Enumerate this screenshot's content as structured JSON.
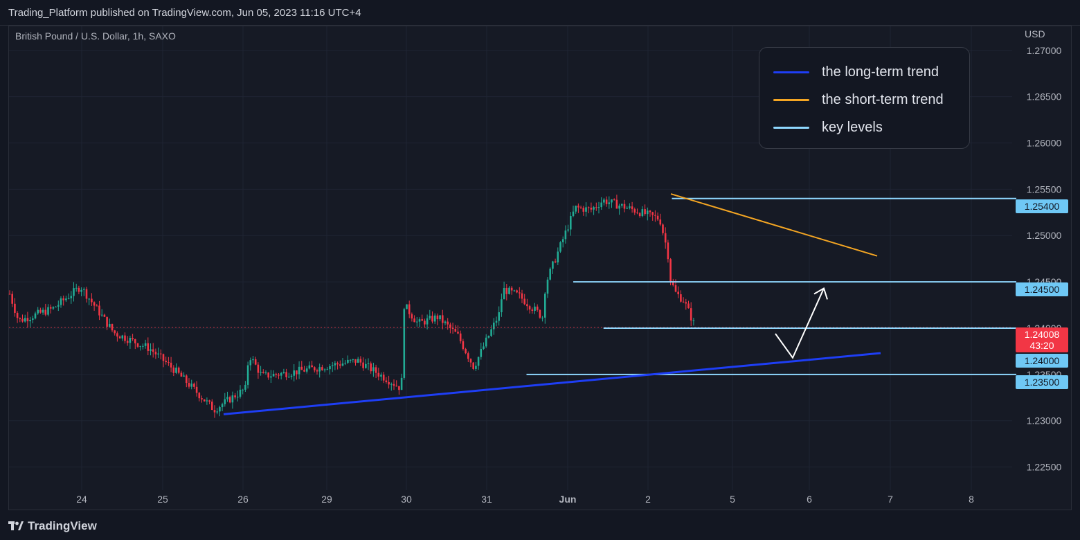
{
  "header": {
    "publish_text": "Trading_Platform published on TradingView.com, Jun 05, 2023 11:16 UTC+4"
  },
  "symbol": {
    "title": "British Pound / U.S. Dollar, 1h, SAXO",
    "currency": "USD"
  },
  "footer": {
    "brand": "TradingView"
  },
  "legend": {
    "items": [
      {
        "label": "the long-term trend",
        "color": "#1e3ef5"
      },
      {
        "label": "the short-term trend",
        "color": "#f5a623"
      },
      {
        "label": "key levels",
        "color": "#8fd8ff"
      }
    ]
  },
  "price_tags": {
    "last_price": "1.24008",
    "countdown": "43:20",
    "levels": [
      "1.25400",
      "1.24500",
      "1.24000",
      "1.23500"
    ]
  },
  "colors": {
    "up": "#22ab94",
    "down": "#f23645",
    "background": "#161a25",
    "grid": "#1f2433",
    "key_level": "#8fd8ff",
    "last_price_tag": "#f23645"
  },
  "chart_data": {
    "type": "candlestick",
    "title": "British Pound / U.S. Dollar, 1h, SAXO",
    "x_ticks": [
      "24",
      "25",
      "26",
      "29",
      "30",
      "31",
      "Jun",
      "2",
      "5",
      "6",
      "7",
      "8"
    ],
    "y_ticks": [
      1.27,
      1.265,
      1.26,
      1.255,
      1.25,
      1.245,
      1.24,
      1.235,
      1.23,
      1.225
    ],
    "y_tick_labels": [
      "1.27000",
      "1.26500",
      "1.26000",
      "1.25500",
      "1.25000",
      "1.24500",
      "1.24000",
      "1.23500",
      "1.23000",
      "1.22500"
    ],
    "ylim": [
      1.2225,
      1.2726
    ],
    "grid": true,
    "last_price": 1.24008,
    "close_path": [
      [
        "24",
        1.2437
      ],
      [
        "24",
        1.2408
      ],
      [
        "24",
        1.2421
      ],
      [
        "24",
        1.2445
      ],
      [
        "25",
        1.2395
      ],
      [
        "25",
        1.2378
      ],
      [
        "26",
        1.2355
      ],
      [
        "26",
        1.2312
      ],
      [
        "26",
        1.2335
      ],
      [
        "26",
        1.2372
      ],
      [
        "29",
        1.2348
      ],
      [
        "29",
        1.2352
      ],
      [
        "30",
        1.2365
      ],
      [
        "30",
        1.2335
      ],
      [
        "30",
        1.2425
      ],
      [
        "31",
        1.2405
      ],
      [
        "31",
        1.2412
      ],
      [
        "31",
        1.2392
      ],
      [
        "31",
        1.2358
      ],
      [
        "Jun",
        1.2415
      ],
      [
        "Jun",
        1.2442
      ],
      [
        "Jun",
        1.2435
      ],
      [
        "Jun",
        1.2412
      ],
      [
        "Jun",
        1.2448
      ],
      [
        "2",
        1.253
      ],
      [
        "2",
        1.2528
      ],
      [
        "2",
        1.2538
      ],
      [
        "2",
        1.253
      ],
      [
        "5",
        1.2518
      ],
      [
        "5",
        1.2482
      ],
      [
        "5",
        1.2452
      ],
      [
        "5",
        1.2438
      ],
      [
        "5",
        1.243
      ],
      [
        "5",
        1.24008
      ]
    ],
    "key_levels": [
      1.254,
      1.245,
      1.24,
      1.235
    ],
    "trendlines": [
      {
        "name": "the long-term trend",
        "from": [
          "26",
          1.2307
        ],
        "to": [
          "7",
          1.2373
        ]
      },
      {
        "name": "the short-term trend",
        "from": [
          "2",
          1.2545
        ],
        "to": [
          "7",
          1.2478
        ]
      }
    ],
    "projection": [
      [
        "5",
        1.2394
      ],
      [
        "6",
        1.2368
      ],
      [
        "6",
        1.2443
      ]
    ]
  }
}
